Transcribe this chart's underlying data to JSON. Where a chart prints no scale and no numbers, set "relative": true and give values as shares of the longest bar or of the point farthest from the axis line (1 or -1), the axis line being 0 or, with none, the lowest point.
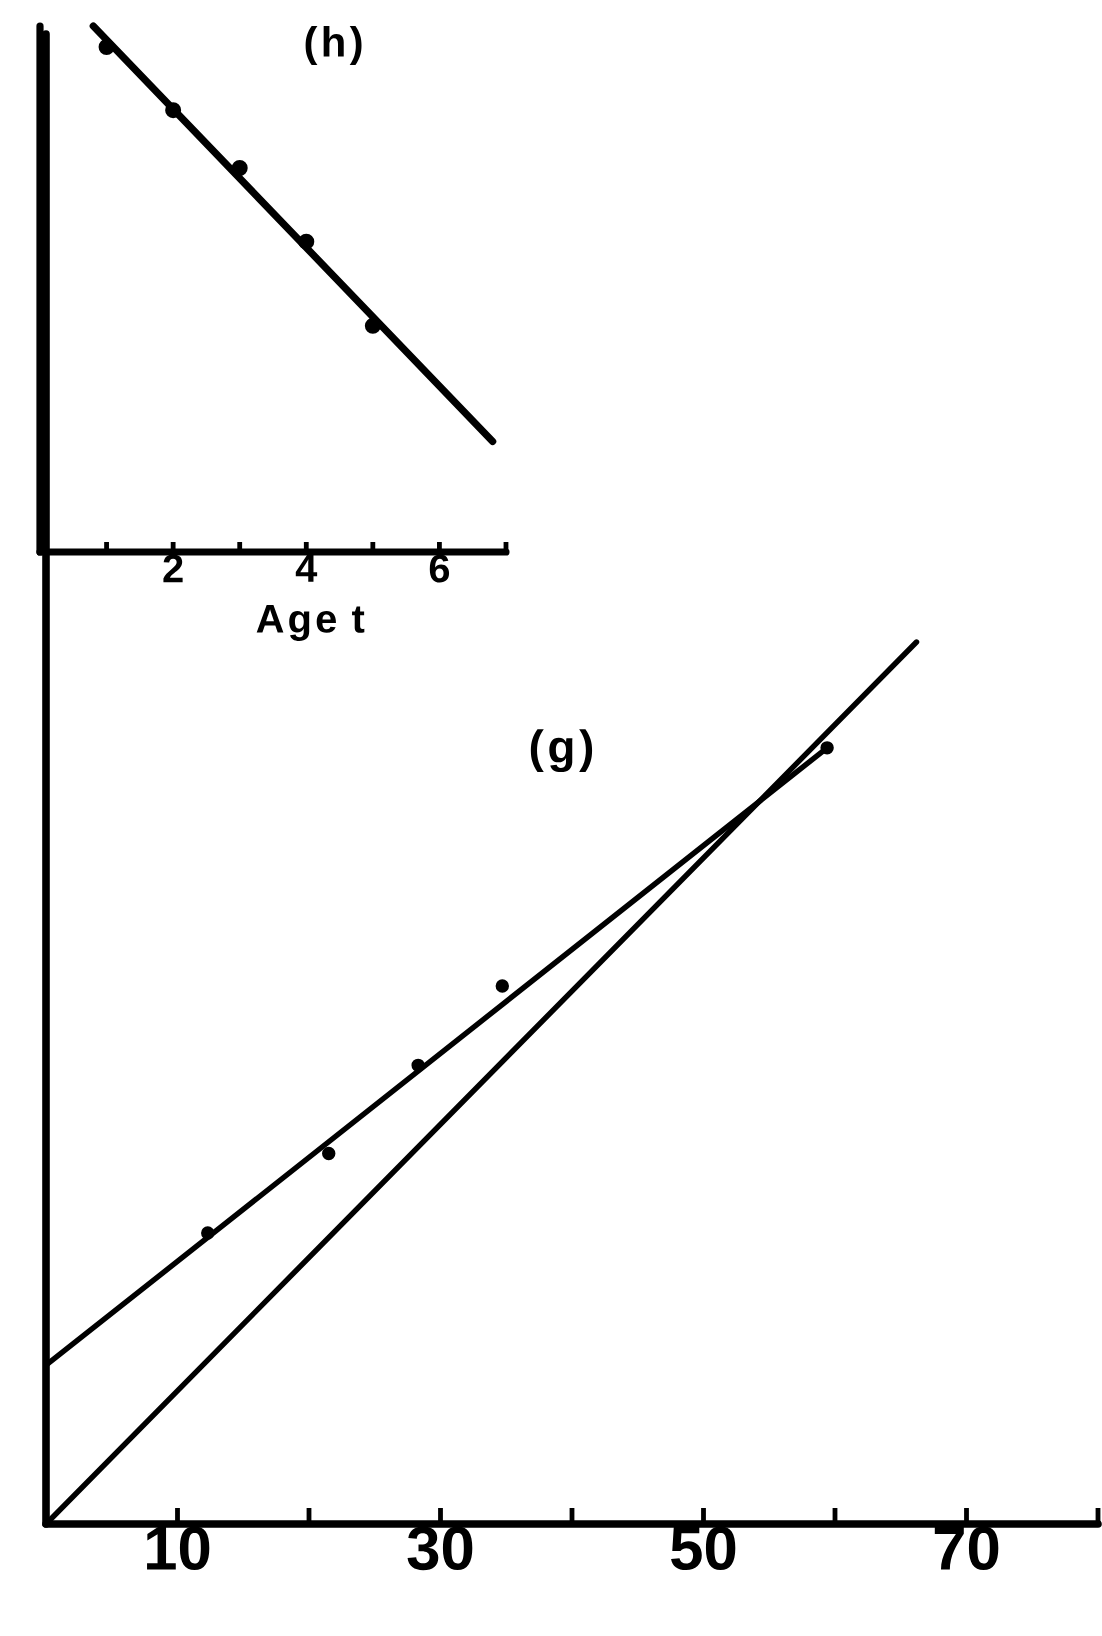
{
  "chart_data": [
    {
      "type": "scatter",
      "title": "(h)",
      "xlabel": "Age t",
      "relative": true,
      "tick_labels": "x",
      "xlim": [
        0,
        7
      ],
      "xticks": [
        {
          "value": 1,
          "label": null
        },
        2,
        {
          "value": 3,
          "label": null
        },
        4,
        {
          "value": 5,
          "label": null
        },
        6,
        {
          "value": 7,
          "label": null
        }
      ],
      "series": [
        {
          "color": "#000000",
          "marker": "circle",
          "x": [
            1,
            2,
            3,
            4,
            5
          ],
          "values": [
            0.96,
            0.84,
            0.73,
            0.59,
            0.43
          ]
        },
        {
          "type": "line",
          "color": "#000000",
          "marker": "none",
          "line_style": "solid",
          "x": [
            0.8,
            6.8
          ],
          "values": [
            1.0,
            0.21
          ]
        }
      ]
    },
    {
      "type": "scatter",
      "title": "(g)",
      "relative": true,
      "tick_labels": "x",
      "xlim": [
        0,
        80
      ],
      "xticks": [
        10,
        {
          "value": 20,
          "label": null
        },
        30,
        {
          "value": 40,
          "label": null
        },
        50,
        {
          "value": 60,
          "label": null
        },
        70,
        {
          "value": 80,
          "label": null
        }
      ],
      "series": [
        {
          "color": "#000000",
          "marker": "circle",
          "x": [
            12.3,
            21.5,
            28.3,
            34.7,
            59.4
          ],
          "values": [
            0.33,
            0.42,
            0.52,
            0.61,
            0.88
          ]
        },
        {
          "type": "line",
          "color": "#000000",
          "marker": "none",
          "line_style": "solid",
          "x": [
            0,
            59.4
          ],
          "values": [
            0.18,
            0.88
          ]
        },
        {
          "type": "line",
          "color": "#000000",
          "marker": "none",
          "line_style": "solid",
          "x": [
            0,
            66.2
          ],
          "values": [
            0,
            1.0
          ]
        }
      ]
    }
  ]
}
